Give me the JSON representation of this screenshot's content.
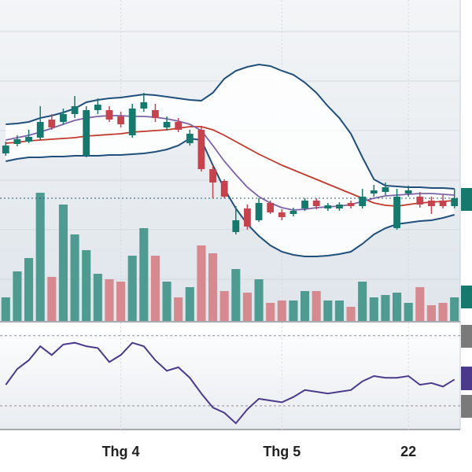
{
  "chart_data": {
    "type": "candlestick",
    "open": [
      213,
      225,
      228,
      233,
      256,
      253,
      263,
      210,
      268,
      268,
      260,
      236,
      270,
      268,
      246,
      253,
      226,
      243,
      193,
      178,
      113,
      143,
      128,
      150,
      138,
      136,
      143,
      153,
      143,
      143,
      150,
      146,
      162,
      164,
      118,
      162,
      158,
      153,
      153,
      146
    ],
    "high": [
      228,
      236,
      243,
      273,
      263,
      270,
      286,
      273,
      283,
      273,
      266,
      276,
      290,
      276,
      260,
      258,
      243,
      248,
      198,
      180,
      146,
      148,
      156,
      153,
      142,
      144,
      156,
      156,
      150,
      151,
      153,
      168,
      173,
      176,
      168,
      172,
      164,
      158,
      160,
      168
    ],
    "low": [
      210,
      222,
      226,
      230,
      243,
      250,
      258,
      208,
      263,
      253,
      246,
      233,
      266,
      253,
      242,
      240,
      223,
      190,
      156,
      156,
      110,
      116,
      126,
      136,
      128,
      133,
      140,
      142,
      140,
      140,
      143,
      143,
      158,
      160,
      116,
      158,
      144,
      136,
      143,
      143
    ],
    "close": [
      223,
      231,
      234,
      253,
      246,
      263,
      273,
      268,
      275,
      256,
      250,
      270,
      278,
      258,
      253,
      243,
      238,
      193,
      176,
      158,
      128,
      120,
      150,
      138,
      132,
      140,
      153,
      146,
      147,
      148,
      146,
      158,
      166,
      170,
      158,
      166,
      148,
      146,
      146,
      156
    ],
    "up_color": "#16796d",
    "down_color": "#c4434d",
    "ylim": [
      0,
      408
    ],
    "yticks": [
      53,
      116,
      179,
      242,
      305,
      368
    ],
    "grid": true,
    "xlim": [
      -0.5,
      39.5
    ],
    "xticks": [
      {
        "value": 10,
        "label": "Thg 4"
      },
      {
        "value": 24,
        "label": "Thg 5"
      },
      {
        "value": 35,
        "label": "22"
      }
    ],
    "lines": [
      {
        "color": "#1f4f7a",
        "values": [
          250,
          251,
          253,
          258,
          261,
          265,
          270,
          278,
          281,
          283,
          284,
          286,
          288,
          287,
          285,
          283,
          281,
          280,
          290,
          308,
          318,
          323,
          326,
          324,
          318,
          313,
          303,
          290,
          273,
          258,
          238,
          208,
          180,
          172,
          171,
          170,
          170,
          169,
          169,
          168
        ]
      },
      {
        "color": "#1f4f7a",
        "values": [
          203,
          206,
          208,
          208,
          209,
          209,
          210,
          210,
          210,
          211,
          211,
          212,
          213,
          215,
          218,
          223,
          232,
          230,
          198,
          168,
          143,
          123,
          108,
          96,
          88,
          84,
          82,
          82,
          83,
          85,
          88,
          98,
          110,
          118,
          123,
          125,
          127,
          128,
          131,
          135
        ]
      },
      {
        "color": "#c0392b",
        "values": [
          226,
          227,
          229,
          230,
          231,
          232,
          233,
          235,
          236,
          237,
          238,
          240,
          241,
          242,
          243,
          245,
          247,
          247,
          243,
          236,
          228,
          220,
          212,
          205,
          198,
          192,
          186,
          180,
          174,
          168,
          162,
          156,
          150,
          147,
          146,
          148,
          150,
          151,
          152,
          153
        ]
      },
      {
        "color": "#7d62a8",
        "values": [
          230,
          233,
          236,
          240,
          245,
          250,
          255,
          258,
          260,
          261,
          261,
          260,
          260,
          259,
          257,
          254,
          250,
          242,
          223,
          203,
          186,
          170,
          158,
          150,
          144,
          141,
          142,
          144,
          145,
          146,
          148,
          152,
          156,
          159,
          160,
          161,
          162,
          162,
          161,
          160
        ]
      }
    ],
    "volume": {
      "ylim": [
        0,
        408
      ],
      "up_color": "#4f9b91",
      "down_color": "#d68a90",
      "values": [
        30,
        63,
        80,
        163,
        56,
        148,
        110,
        90,
        60,
        53,
        50,
        83,
        118,
        83,
        50,
        30,
        43,
        96,
        86,
        38,
        66,
        36,
        53,
        23,
        26,
        26,
        38,
        38,
        26,
        26,
        18,
        50,
        30,
        33,
        36,
        23,
        43,
        20,
        23,
        30
      ]
    },
    "rsi": {
      "color": "#4b3a8c",
      "ylim": [
        16,
        78
      ],
      "yticks": [
        30,
        70
      ],
      "values": [
        42,
        51,
        56,
        64,
        59,
        65,
        66,
        64,
        63,
        55,
        59,
        66,
        64,
        56,
        50,
        52,
        46,
        37,
        29,
        26,
        20,
        28,
        34,
        33,
        32,
        35,
        39,
        38,
        37,
        38,
        39,
        44,
        47,
        46,
        46,
        47,
        42,
        43,
        41,
        45
      ]
    }
  }
}
